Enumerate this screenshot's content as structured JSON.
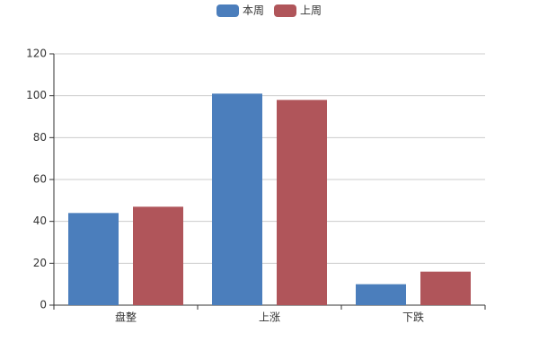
{
  "chart_data": {
    "type": "bar",
    "categories": [
      "盘整",
      "上涨",
      "下跌"
    ],
    "series": [
      {
        "name": "本周",
        "color": "#4b7ebc",
        "values": [
          44,
          101,
          10
        ]
      },
      {
        "name": "上周",
        "color": "#b0555a",
        "values": [
          47,
          98,
          16
        ]
      }
    ],
    "ylim": [
      0,
      120
    ],
    "yticks": [
      0,
      20,
      40,
      60,
      80,
      100,
      120
    ],
    "grid": true
  }
}
